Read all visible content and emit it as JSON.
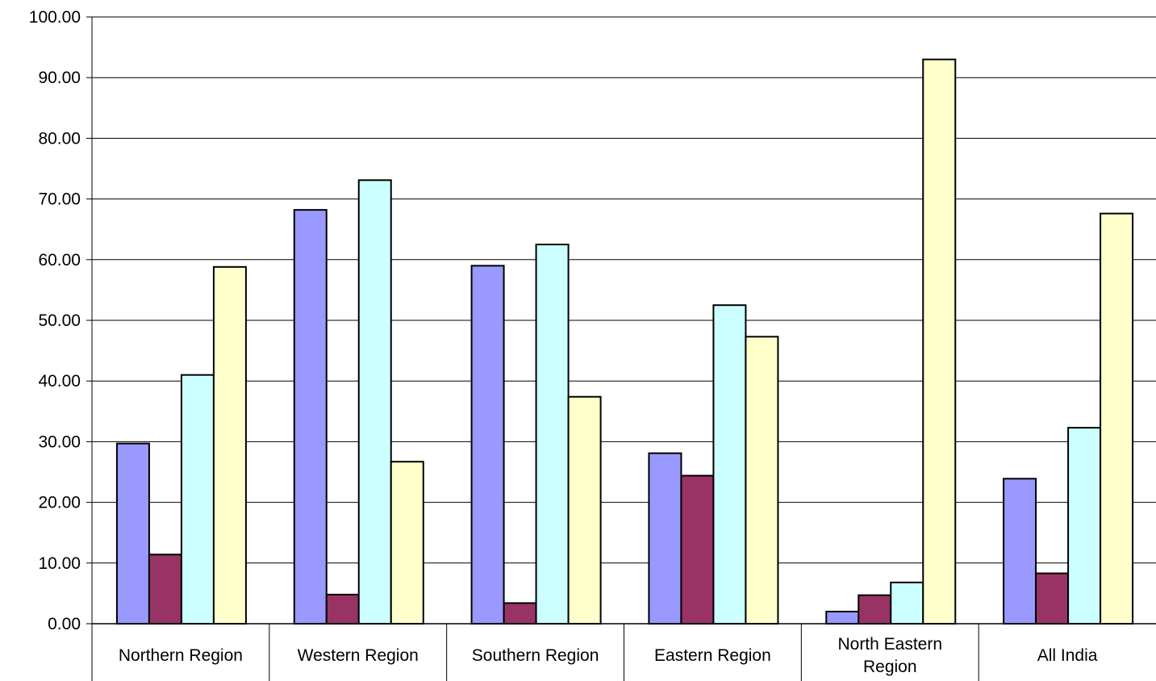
{
  "chart_data": {
    "type": "bar",
    "title": "",
    "xlabel": "",
    "ylabel": "",
    "ylim": [
      0,
      100
    ],
    "yticks": [
      "0.00",
      "10.00",
      "20.00",
      "30.00",
      "40.00",
      "50.00",
      "60.00",
      "70.00",
      "80.00",
      "90.00",
      "100.00"
    ],
    "grid": true,
    "categories": [
      [
        "Northern Region"
      ],
      [
        "Western Region"
      ],
      [
        "Southern Region"
      ],
      [
        "Eastern Region"
      ],
      [
        "North Eastern",
        "Region"
      ],
      [
        "All India"
      ]
    ],
    "series": [
      {
        "color": "#9999ff",
        "values": [
          29.7,
          68.2,
          59.0,
          28.1,
          2.0,
          23.9
        ]
      },
      {
        "color": "#993366",
        "values": [
          11.4,
          4.8,
          3.4,
          24.4,
          4.7,
          8.3
        ]
      },
      {
        "color": "#ccffff",
        "values": [
          41.0,
          73.1,
          62.5,
          52.5,
          6.8,
          32.3
        ]
      },
      {
        "color": "#ffffcc",
        "values": [
          58.8,
          26.7,
          37.4,
          47.3,
          93.0,
          67.6
        ]
      }
    ]
  }
}
